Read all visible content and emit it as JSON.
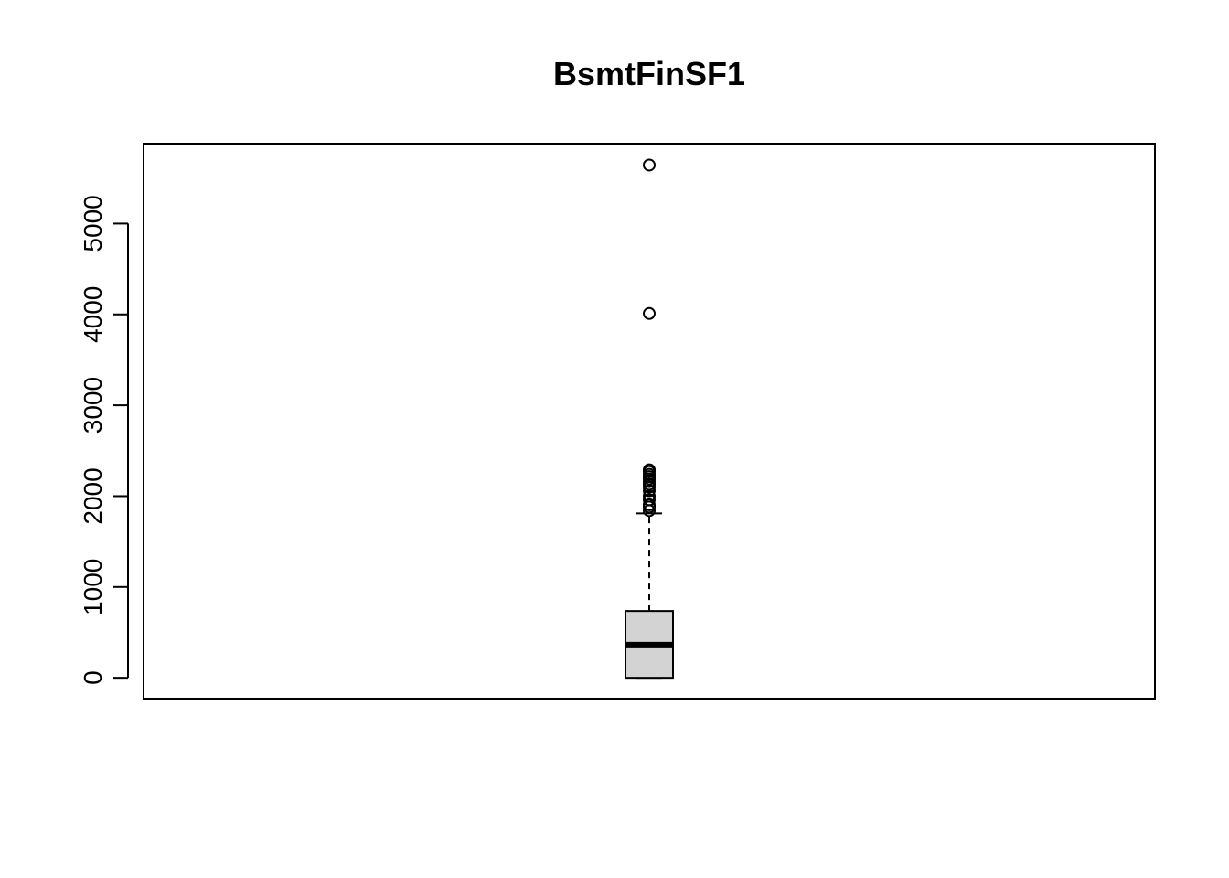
{
  "chart_data": {
    "type": "boxplot",
    "title": "BsmtFinSF1",
    "xlabel": "",
    "ylabel": "",
    "ylim": [
      -230,
      5880
    ],
    "y_ticks": [
      0,
      1000,
      2000,
      3000,
      4000,
      5000
    ],
    "y_tick_labels": [
      "0",
      "1000",
      "2000",
      "3000",
      "4000",
      "5000"
    ],
    "box": {
      "min": 0,
      "q1": 0,
      "median": 365,
      "q3": 735,
      "whisker_low": 0,
      "whisker_high": 1810
    },
    "outliers": [
      1840,
      1880,
      1905,
      1960,
      2000,
      2060,
      2100,
      2130,
      2160,
      2190,
      2215,
      2240,
      2270,
      2290,
      4010,
      5644
    ],
    "box_fill": "#d3d3d3",
    "line_color": "#000000",
    "grid": false
  }
}
